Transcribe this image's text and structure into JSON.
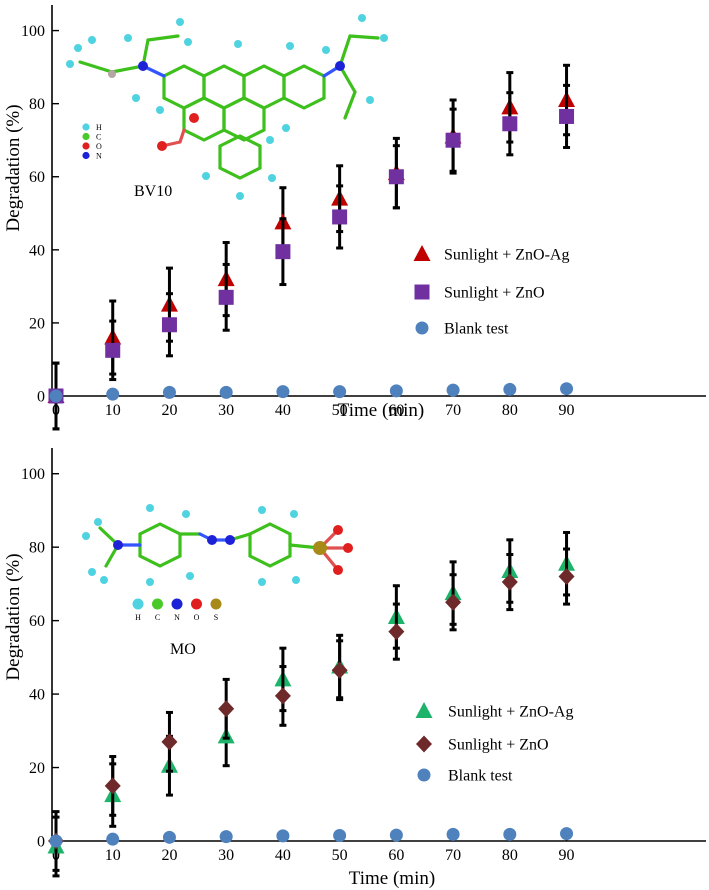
{
  "colors": {
    "zno_ag_red": "#c00000",
    "zno_purple": "#7030a0",
    "zno_ag_green": "#1db36a",
    "zno_brown": "#6e2a2a",
    "blank_blue": "#4f81bd",
    "error_bar": "#000000",
    "atom_H": "#4fd3e0",
    "atom_C": "#4ac92a",
    "atom_N": "#1d22d6",
    "atom_O": "#e0201e",
    "atom_S": "#a88a18"
  },
  "chart_data": [
    {
      "type": "scatter",
      "name": "panel-bv10",
      "compound": "BV10",
      "atom_key": [
        "H",
        "C",
        "O",
        "N"
      ],
      "atom_key_colors": [
        "#4fd3e0",
        "#4ac92a",
        "#e0201e",
        "#1d22d6"
      ],
      "xlabel": "Time (min)",
      "ylabel": "Degradation (%)",
      "xlim": [
        0,
        110
      ],
      "ylim": [
        0,
        107
      ],
      "xticks": [
        0,
        10,
        20,
        30,
        40,
        50,
        60,
        70,
        80,
        90
      ],
      "yticks": [
        0,
        20,
        40,
        60,
        80,
        100
      ],
      "series": [
        {
          "name": "Sunlight + ZnO-Ag",
          "marker": "triangle",
          "color": "#c00000",
          "x": [
            0,
            10,
            20,
            30,
            40,
            50,
            60,
            70,
            80,
            90
          ],
          "y": [
            0,
            16,
            25,
            32,
            47.5,
            54,
            61,
            71,
            79,
            81
          ],
          "err": [
            9,
            10,
            10,
            10,
            9.5,
            9,
            9.5,
            10,
            9.5,
            9.5
          ]
        },
        {
          "name": "Sunlight + ZnO",
          "marker": "square",
          "color": "#7030a0",
          "x": [
            0,
            10,
            20,
            30,
            40,
            50,
            60,
            70,
            80,
            90
          ],
          "y": [
            0,
            12.5,
            19.5,
            27,
            39.5,
            49,
            60,
            70,
            74.5,
            76.5
          ],
          "err": [
            9,
            8,
            8.5,
            9,
            9,
            8.5,
            8.5,
            8.5,
            8.5,
            8.5
          ]
        },
        {
          "name": "Blank test",
          "marker": "circle",
          "color": "#4f81bd",
          "x": [
            0,
            10,
            20,
            30,
            40,
            50,
            60,
            70,
            80,
            90
          ],
          "y": [
            0,
            0.5,
            1,
            1,
            1.2,
            1.2,
            1.4,
            1.6,
            1.8,
            2
          ],
          "err": [
            0,
            0,
            0,
            0,
            0,
            0,
            0,
            0,
            0,
            0
          ]
        }
      ]
    },
    {
      "type": "scatter",
      "name": "panel-mo",
      "compound": "MO",
      "atom_key": [
        "H",
        "C",
        "N",
        "O",
        "S"
      ],
      "atom_key_colors": [
        "#4fd3e0",
        "#4ac92a",
        "#1d22d6",
        "#e0201e",
        "#a88a18"
      ],
      "xlabel": "Time (min)",
      "ylabel": "Degradation (%)",
      "xlim": [
        0,
        110
      ],
      "ylim": [
        0,
        107
      ],
      "xticks": [
        0,
        10,
        20,
        30,
        40,
        50,
        60,
        70,
        80,
        90
      ],
      "yticks": [
        0,
        20,
        40,
        60,
        80,
        100
      ],
      "series": [
        {
          "name": "Sunlight + ZnO-Ag",
          "marker": "triangle",
          "color": "#1db36a",
          "x": [
            0,
            10,
            20,
            30,
            40,
            50,
            60,
            70,
            80,
            90
          ],
          "y": [
            -1.5,
            12.5,
            20.5,
            28.5,
            44,
            47.5,
            61,
            67.5,
            73.5,
            75.5
          ],
          "err": [
            8,
            8.5,
            8,
            8,
            8.5,
            8.5,
            8.5,
            8.5,
            8.5,
            8.5
          ]
        },
        {
          "name": "Sunlight + ZnO",
          "marker": "diamond",
          "color": "#6e2a2a",
          "x": [
            0,
            10,
            20,
            30,
            40,
            50,
            60,
            70,
            80,
            90
          ],
          "y": [
            0,
            15,
            27,
            36,
            39.5,
            46.5,
            57,
            65,
            70.5,
            72
          ],
          "err": [
            8,
            8,
            8,
            8,
            8,
            8,
            7.5,
            7.5,
            7.5,
            7.5
          ]
        },
        {
          "name": "Blank test",
          "marker": "circle",
          "color": "#4f81bd",
          "x": [
            0,
            10,
            20,
            30,
            40,
            50,
            60,
            70,
            80,
            90
          ],
          "y": [
            0,
            0.5,
            1,
            1.2,
            1.4,
            1.5,
            1.6,
            1.8,
            1.8,
            2
          ],
          "err": [
            0,
            0,
            0,
            0,
            0,
            0,
            0,
            0,
            0,
            0
          ]
        }
      ]
    }
  ]
}
